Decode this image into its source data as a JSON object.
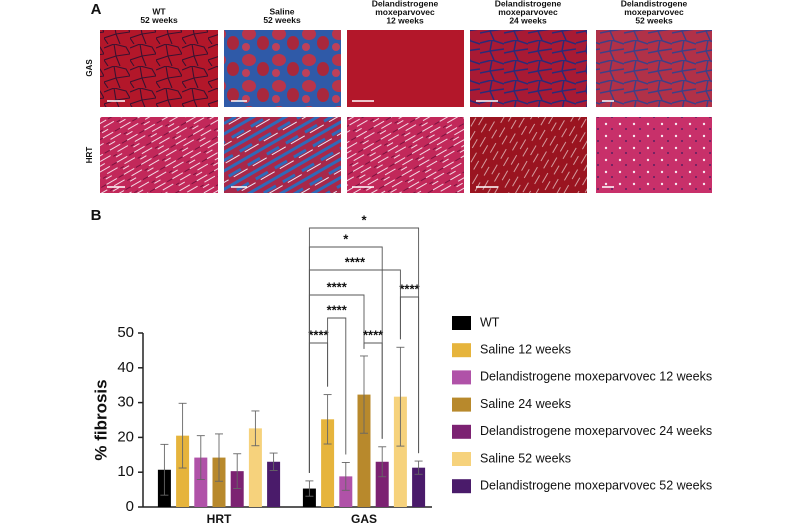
{
  "panel_a": {
    "label": "A",
    "columns": [
      [
        "WT",
        "52 weeks"
      ],
      [
        "Saline",
        "52 weeks"
      ],
      [
        "Delandistrogene",
        "moxeparvovec",
        "12 weeks"
      ],
      [
        "Delandistrogene",
        "moxeparvovec",
        "24 weeks"
      ],
      [
        "Delandistrogene",
        "moxeparvovec",
        "52 weeks"
      ]
    ],
    "rows": [
      "GAS",
      "HRT"
    ]
  },
  "chart_data": {
    "type": "bar",
    "panel_label": "B",
    "y_label": "% fibrosis",
    "categories": [
      "HRT",
      "GAS"
    ],
    "ylim": [
      0,
      50
    ],
    "yticks": [
      0,
      10,
      20,
      30,
      40,
      50
    ],
    "series": [
      {
        "name": "WT",
        "color": "#000000",
        "values": [
          10.7,
          5.3
        ],
        "errors": [
          7.3,
          2.2
        ]
      },
      {
        "name": "Saline 12 weeks",
        "color": "#e6b43c",
        "values": [
          20.5,
          25.2
        ],
        "errors": [
          9.3,
          7.1
        ]
      },
      {
        "name": "Delandistrogene moxeparvovec 12 weeks",
        "color": "#b052a8",
        "values": [
          14.2,
          8.8
        ],
        "errors": [
          6.3,
          4.0
        ]
      },
      {
        "name": "Saline 24 weeks",
        "color": "#b8892c",
        "values": [
          14.2,
          32.3
        ],
        "errors": [
          6.8,
          11.1
        ]
      },
      {
        "name": "Delandistrogene moxeparvovec 24 weeks",
        "color": "#7c2272",
        "values": [
          10.3,
          13.0
        ],
        "errors": [
          5.0,
          4.3
        ]
      },
      {
        "name": "Saline 52 weeks",
        "color": "#f6d27c",
        "values": [
          22.6,
          31.7
        ],
        "errors": [
          5.0,
          14.2
        ]
      },
      {
        "name": "Delandistrogene moxeparvovec 52 weeks",
        "color": "#4a1b6a",
        "values": [
          13.0,
          11.3
        ],
        "errors": [
          2.5,
          1.9
        ]
      }
    ],
    "annotations": [
      "****",
      "****",
      "****",
      "****",
      "****",
      "****",
      "*",
      "*"
    ]
  }
}
